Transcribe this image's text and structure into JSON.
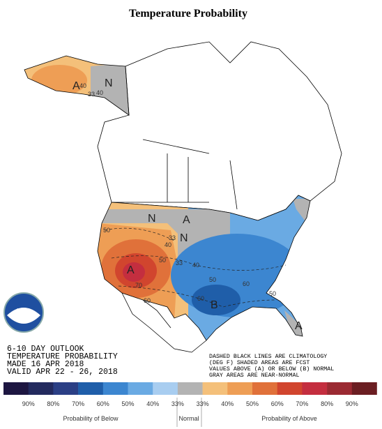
{
  "title": "Temperature Probability",
  "map": {
    "region_labels": [
      "A",
      "N",
      "N",
      "A",
      "N",
      "A",
      "B",
      "A"
    ],
    "contour_labels": [
      "40",
      "33",
      "40",
      "50",
      "33",
      "40",
      "50",
      "70",
      "60",
      "33",
      "40",
      "50",
      "60",
      "60",
      "50"
    ]
  },
  "info_block": [
    "6-10 DAY OUTLOOK",
    "TEMPERATURE PROBABILITY",
    "MADE  16 APR 2018",
    "VALID  APR 22 - 26, 2018"
  ],
  "note": [
    "DASHED BLACK LINES ARE CLIMATOLOGY",
    "(DEG F) SHADED AREAS ARE FCST",
    "VALUES ABOVE (A) OR BELOW (B) NORMAL",
    "GRAY AREAS ARE NEAR-NORMAL"
  ],
  "legend": {
    "colors": [
      "#1d1641",
      "#232a5e",
      "#2b3f85",
      "#1f5ea9",
      "#3c86d0",
      "#6aaae3",
      "#a8cdf0",
      "#b3b3b3",
      "#f4c07a",
      "#ee9e55",
      "#e0713a",
      "#d1452e",
      "#c42e3f",
      "#9b2a32",
      "#6b1e22"
    ],
    "labels": [
      "90%",
      "80%",
      "70%",
      "60%",
      "50%",
      "40%",
      "33%",
      "33%",
      "40%",
      "50%",
      "60%",
      "70%",
      "80%",
      "90%"
    ],
    "below": "Probability of Below",
    "normal": "Normal",
    "above": "Probability of Above"
  }
}
